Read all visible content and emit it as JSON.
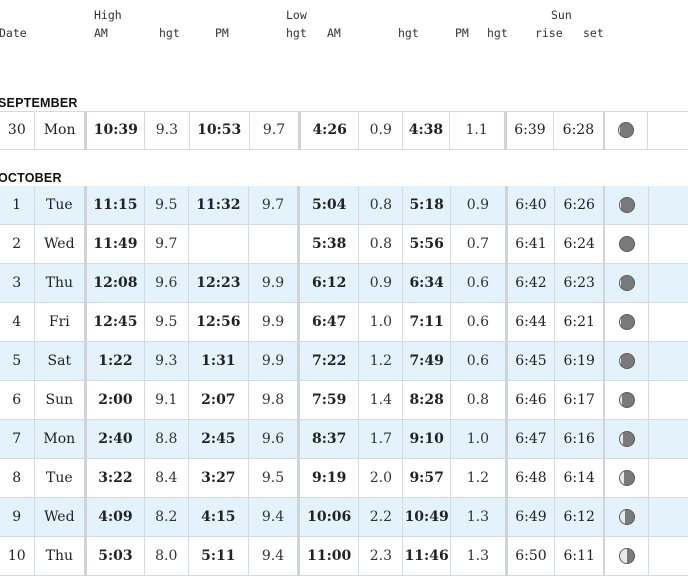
{
  "headers": {
    "row1": {
      "high": "High",
      "low": "Low",
      "sun": "Sun"
    },
    "row2": {
      "date": "Date",
      "high_am": "AM",
      "high_am_hgt": "hgt",
      "high_pm": "PM",
      "high_pm_hgt": "hgt",
      "low_am": "AM",
      "low_am_hgt": "hgt",
      "low_pm": "PM",
      "low_pm_hgt": "hgt",
      "sun_rise": "rise",
      "sun_set": "set"
    }
  },
  "months": [
    {
      "name": "SEPTEMBER",
      "days": [
        {
          "day": "30",
          "dow": "Mon",
          "hi_am": "10:39",
          "hi_am_h": "9.3",
          "hi_pm": "10:53",
          "hi_pm_h": "9.7",
          "lo_am": "4:26",
          "lo_am_h": "0.9",
          "lo_pm": "4:38",
          "lo_pm_h": "1.1",
          "rise": "6:39",
          "set": "6:28",
          "moon_lit": 0.1
        }
      ]
    },
    {
      "name": "OCTOBER",
      "days": [
        {
          "day": "1",
          "dow": "Tue",
          "hi_am": "11:15",
          "hi_am_h": "9.5",
          "hi_pm": "11:32",
          "hi_pm_h": "9.7",
          "lo_am": "5:04",
          "lo_am_h": "0.8",
          "lo_pm": "5:18",
          "lo_pm_h": "0.9",
          "rise": "6:40",
          "set": "6:26",
          "moon_lit": 0.05
        },
        {
          "day": "2",
          "dow": "Wed",
          "hi_am": "11:49",
          "hi_am_h": "9.7",
          "hi_pm": "",
          "hi_pm_h": "",
          "lo_am": "5:38",
          "lo_am_h": "0.8",
          "lo_pm": "5:56",
          "lo_pm_h": "0.7",
          "rise": "6:41",
          "set": "6:24",
          "moon_lit": 0.0
        },
        {
          "day": "3",
          "dow": "Thu",
          "hi_am": "12:08",
          "hi_am_h": "9.6",
          "hi_pm": "12:23",
          "hi_pm_h": "9.9",
          "lo_am": "6:12",
          "lo_am_h": "0.9",
          "lo_pm": "6:34",
          "lo_pm_h": "0.6",
          "rise": "6:42",
          "set": "6:23",
          "moon_lit": 0.02
        },
        {
          "day": "4",
          "dow": "Fri",
          "hi_am": "12:45",
          "hi_am_h": "9.5",
          "hi_pm": "12:56",
          "hi_pm_h": "9.9",
          "lo_am": "6:47",
          "lo_am_h": "1.0",
          "lo_pm": "7:11",
          "lo_pm_h": "0.6",
          "rise": "6:44",
          "set": "6:21",
          "moon_lit": 0.05
        },
        {
          "day": "5",
          "dow": "Sat",
          "hi_am": "1:22",
          "hi_am_h": "9.3",
          "hi_pm": "1:31",
          "hi_pm_h": "9.9",
          "lo_am": "7:22",
          "lo_am_h": "1.2",
          "lo_pm": "7:49",
          "lo_pm_h": "0.6",
          "rise": "6:45",
          "set": "6:19",
          "moon_lit": 0.08
        },
        {
          "day": "6",
          "dow": "Sun",
          "hi_am": "2:00",
          "hi_am_h": "9.1",
          "hi_pm": "2:07",
          "hi_pm_h": "9.8",
          "lo_am": "7:59",
          "lo_am_h": "1.4",
          "lo_pm": "8:28",
          "lo_pm_h": "0.8",
          "rise": "6:46",
          "set": "6:17",
          "moon_lit": 0.14
        },
        {
          "day": "7",
          "dow": "Mon",
          "hi_am": "2:40",
          "hi_am_h": "8.8",
          "hi_pm": "2:45",
          "hi_pm_h": "9.6",
          "lo_am": "8:37",
          "lo_am_h": "1.7",
          "lo_pm": "9:10",
          "lo_pm_h": "1.0",
          "rise": "6:47",
          "set": "6:16",
          "moon_lit": 0.22
        },
        {
          "day": "8",
          "dow": "Tue",
          "hi_am": "3:22",
          "hi_am_h": "8.4",
          "hi_pm": "3:27",
          "hi_pm_h": "9.5",
          "lo_am": "9:19",
          "lo_am_h": "2.0",
          "lo_pm": "9:57",
          "lo_pm_h": "1.2",
          "rise": "6:48",
          "set": "6:14",
          "moon_lit": 0.3
        },
        {
          "day": "9",
          "dow": "Wed",
          "hi_am": "4:09",
          "hi_am_h": "8.2",
          "hi_pm": "4:15",
          "hi_pm_h": "9.4",
          "lo_am": "10:06",
          "lo_am_h": "2.2",
          "lo_pm": "10:49",
          "lo_pm_h": "1.3",
          "rise": "6:49",
          "set": "6:12",
          "moon_lit": 0.4
        },
        {
          "day": "10",
          "dow": "Thu",
          "hi_am": "5:03",
          "hi_am_h": "8.0",
          "hi_pm": "5:11",
          "hi_pm_h": "9.4",
          "lo_am": "11:00",
          "lo_am_h": "2.3",
          "lo_pm": "11:46",
          "lo_pm_h": "1.3",
          "rise": "6:50",
          "set": "6:11",
          "moon_lit": 0.5
        }
      ]
    }
  ]
}
